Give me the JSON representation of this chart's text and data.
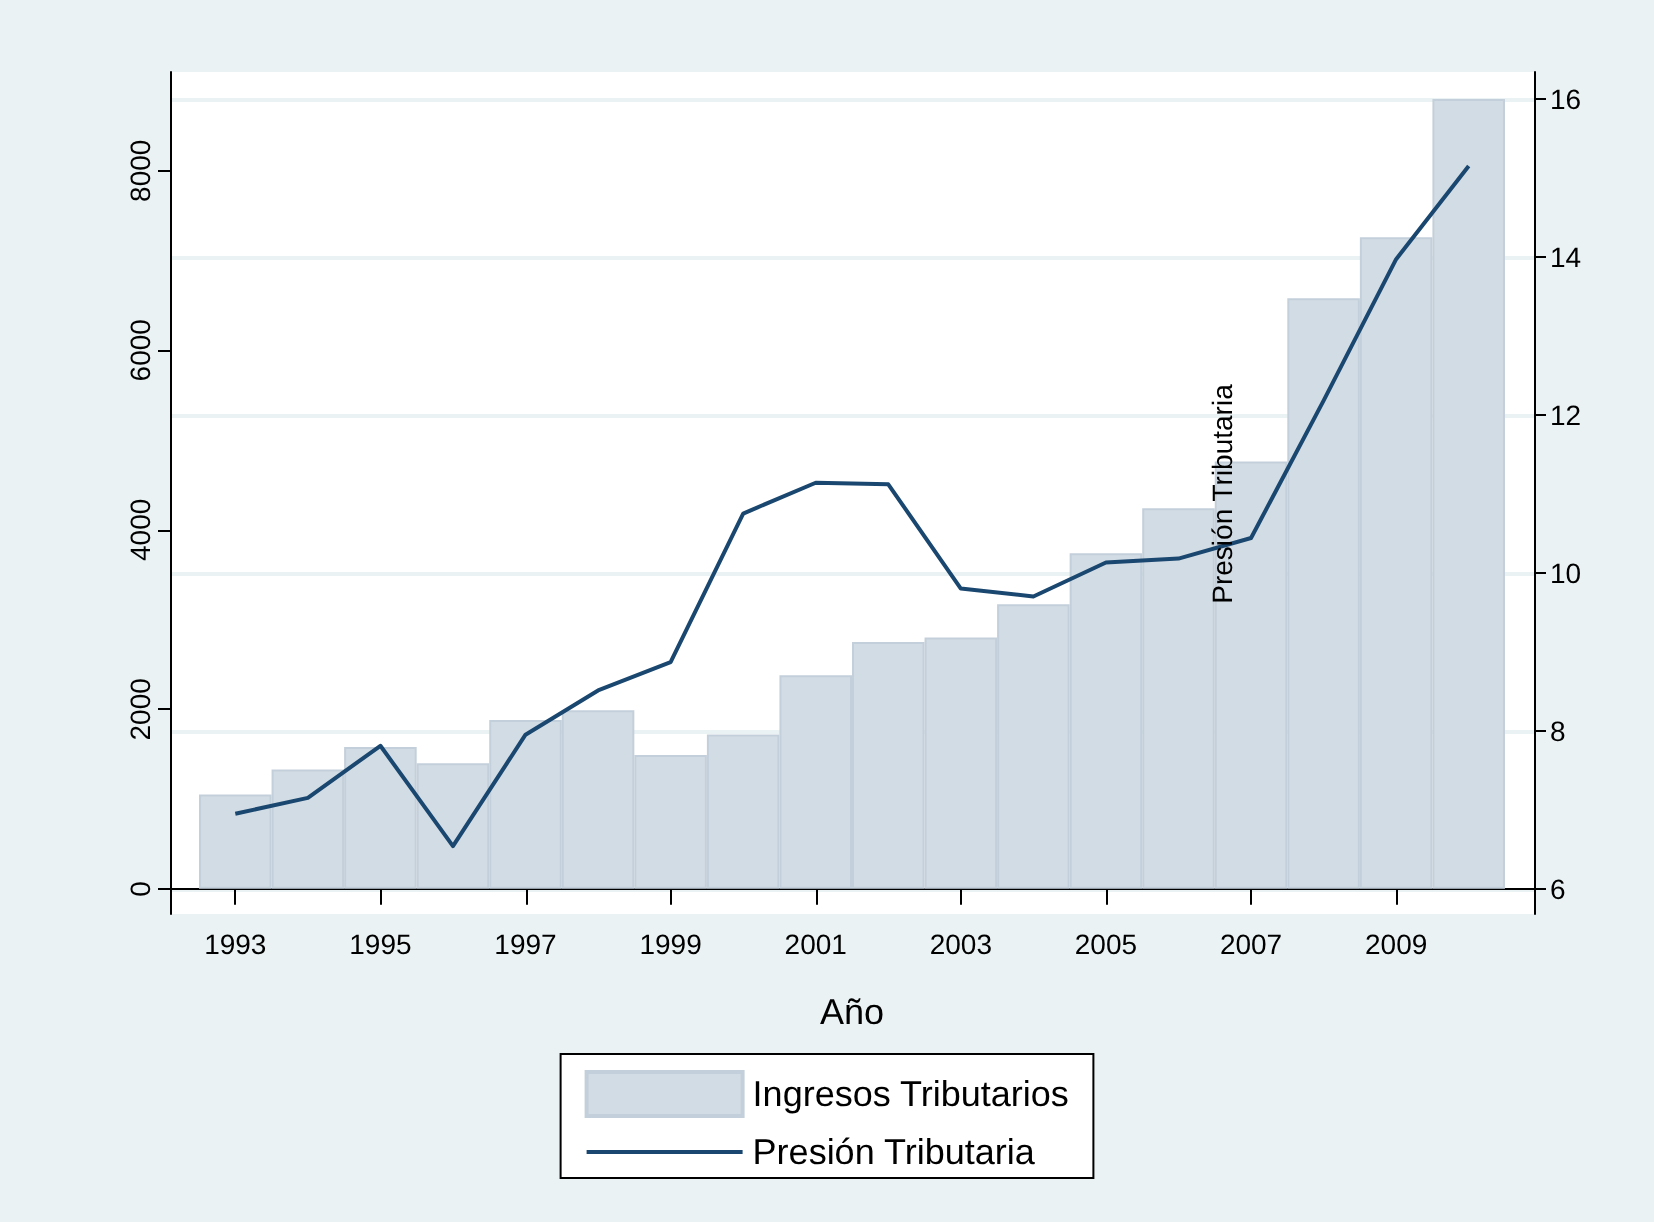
{
  "chart_data": {
    "type": "bar",
    "xlabel": "Año",
    "annotations": [
      "Presión Tributaria"
    ],
    "x": [
      1993,
      1994,
      1995,
      1996,
      1997,
      1998,
      1999,
      2000,
      2001,
      2002,
      2003,
      2004,
      2005,
      2006,
      2007,
      2008,
      2009,
      2010
    ],
    "xlim": [
      1992.1,
      2010.9
    ],
    "xticks": [
      1993,
      1995,
      1997,
      1999,
      2001,
      2003,
      2005,
      2007,
      2009
    ],
    "ylim": [
      -280,
      9100
    ],
    "yticks": [
      0,
      2000,
      4000,
      6000,
      8000
    ],
    "y2lim": [
      5.68,
      16.34
    ],
    "y2ticks": [
      6,
      8,
      10,
      12,
      14,
      16
    ],
    "series": [
      {
        "name": "Ingresos Tributarios",
        "color": "#d2dce5",
        "values": [
          1050,
          1330,
          1580,
          1400,
          1880,
          1990,
          1490,
          1720,
          2380,
          2750,
          2800,
          3170,
          3740,
          4240,
          4760,
          6580,
          7260,
          8800
        ]
      },
      {
        "name": "Presión Tributaria",
        "type": "line",
        "axis": "y2",
        "color": "#1a476f",
        "values": [
          6.95,
          7.15,
          7.81,
          6.54,
          7.95,
          8.51,
          8.87,
          10.75,
          11.14,
          11.12,
          9.8,
          9.7,
          10.13,
          10.18,
          10.44,
          12.18,
          13.97,
          15.15
        ]
      }
    ],
    "grid": "y",
    "legend": "bottom",
    "marker": "none",
    "line_style": "solid"
  }
}
